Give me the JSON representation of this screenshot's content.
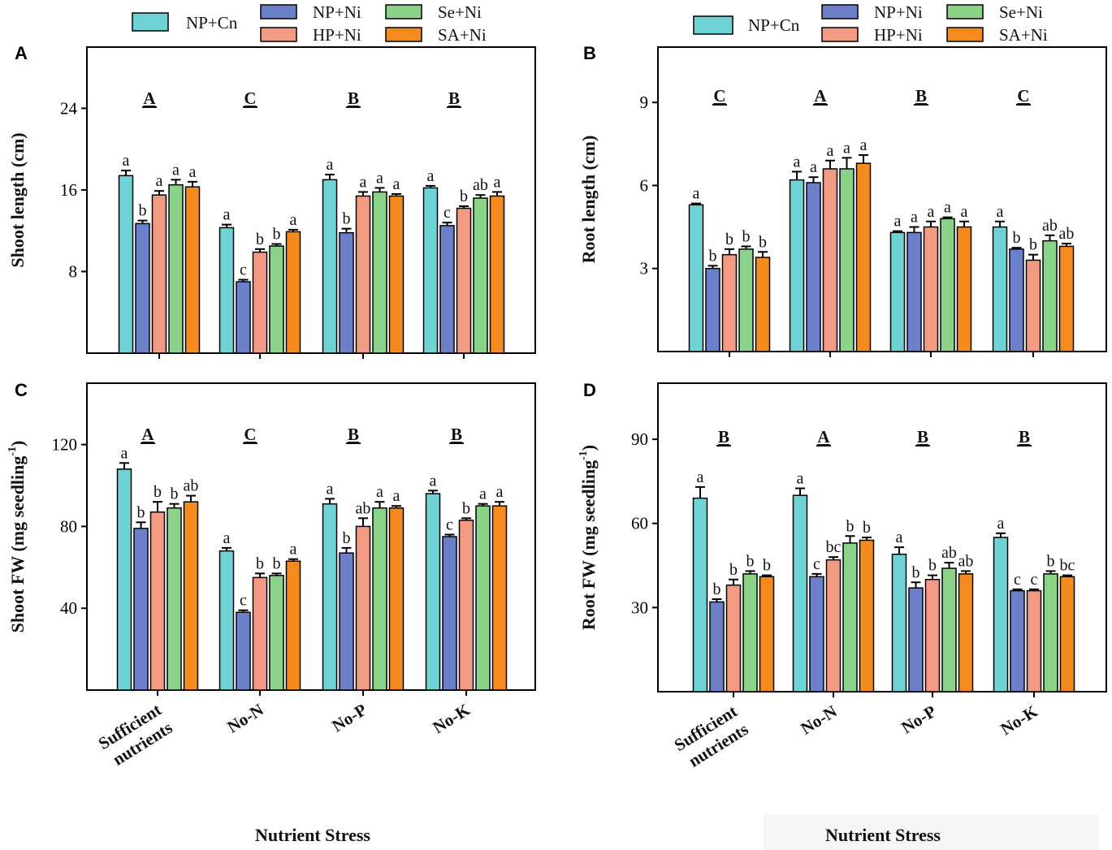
{
  "legend": {
    "entries": [
      {
        "name": "NP+Cn",
        "color": "#6fd3d6"
      },
      {
        "name": "NP+Ni",
        "color": "#6c80c9"
      },
      {
        "name": "HP+Ni",
        "color": "#f39a85"
      },
      {
        "name": "Se+Ni",
        "color": "#8cd38a"
      },
      {
        "name": "SA+Ni",
        "color": "#f58a1f"
      }
    ]
  },
  "x_axis_title": "Nutrient Stress",
  "chart_data": [
    {
      "panel": "A",
      "type": "bar",
      "ylabel": "Shoot length (cm)",
      "ylim": [
        0,
        30
      ],
      "yticks": [
        8,
        16,
        24
      ],
      "categories": [
        "Sufficient nutrients",
        "No-N",
        "No-P",
        "No-K"
      ],
      "category_lines": [
        [
          "Sufficient",
          "nutrients"
        ],
        [
          "No-N"
        ],
        [
          "No-P"
        ],
        [
          "No-K"
        ]
      ],
      "show_xticklabels": false,
      "group_letters": [
        "A",
        "C",
        "B",
        "B"
      ],
      "series": [
        {
          "name": "NP+Cn",
          "values": [
            17.4,
            12.3,
            17.0,
            16.2
          ],
          "errors": [
            0.5,
            0.3,
            0.5,
            0.2
          ],
          "letters": [
            "a",
            "a",
            "a",
            "a"
          ]
        },
        {
          "name": "NP+Ni",
          "values": [
            12.7,
            7.0,
            11.8,
            12.5
          ],
          "errors": [
            0.3,
            0.2,
            0.4,
            0.3
          ],
          "letters": [
            "b",
            "c",
            "b",
            "c"
          ]
        },
        {
          "name": "HP+Ni",
          "values": [
            15.5,
            9.9,
            15.4,
            14.2
          ],
          "errors": [
            0.4,
            0.3,
            0.4,
            0.2
          ],
          "letters": [
            "a",
            "b",
            "a",
            "b"
          ]
        },
        {
          "name": "Se+Ni",
          "values": [
            16.5,
            10.5,
            15.8,
            15.2
          ],
          "errors": [
            0.5,
            0.2,
            0.4,
            0.3
          ],
          "letters": [
            "a",
            "b",
            "a",
            "ab"
          ]
        },
        {
          "name": "SA+Ni",
          "values": [
            16.3,
            11.9,
            15.4,
            15.4
          ],
          "errors": [
            0.5,
            0.2,
            0.2,
            0.4
          ],
          "letters": [
            "a",
            "a",
            "a",
            "a"
          ]
        }
      ]
    },
    {
      "panel": "B",
      "type": "bar",
      "ylabel": "Root length (cm)",
      "ylim": [
        0,
        11
      ],
      "yticks": [
        3,
        6,
        9
      ],
      "categories": [
        "Sufficient nutrients",
        "No-N",
        "No-P",
        "No-K"
      ],
      "category_lines": [
        [
          "Sufficient",
          "nutrients"
        ],
        [
          "No-N"
        ],
        [
          "No-P"
        ],
        [
          "No-K"
        ]
      ],
      "show_xticklabels": false,
      "group_letters": [
        "C",
        "A",
        "B",
        "C"
      ],
      "series": [
        {
          "name": "NP+Cn",
          "values": [
            5.3,
            6.2,
            4.3,
            4.5
          ],
          "errors": [
            0.05,
            0.3,
            0.05,
            0.2
          ],
          "letters": [
            "a",
            "a",
            "a",
            "a"
          ]
        },
        {
          "name": "NP+Ni",
          "values": [
            3.0,
            6.1,
            4.3,
            3.7
          ],
          "errors": [
            0.1,
            0.2,
            0.2,
            0.05
          ],
          "letters": [
            "b",
            "a",
            "a",
            "b"
          ]
        },
        {
          "name": "HP+Ni",
          "values": [
            3.5,
            6.6,
            4.5,
            3.3
          ],
          "errors": [
            0.2,
            0.3,
            0.2,
            0.2
          ],
          "letters": [
            "b",
            "a",
            "a",
            "b"
          ]
        },
        {
          "name": "Se+Ni",
          "values": [
            3.7,
            6.6,
            4.8,
            4.0
          ],
          "errors": [
            0.1,
            0.4,
            0.05,
            0.2
          ],
          "letters": [
            "b",
            "a",
            "a",
            "ab"
          ]
        },
        {
          "name": "SA+Ni",
          "values": [
            3.4,
            6.8,
            4.5,
            3.8
          ],
          "errors": [
            0.2,
            0.3,
            0.2,
            0.1
          ],
          "letters": [
            "b",
            "a",
            "a",
            "ab"
          ]
        }
      ]
    },
    {
      "panel": "C",
      "type": "bar",
      "ylabel": "Shoot FW (mg seedling",
      "ylabel_sup": "-1",
      "ylabel_end": ")",
      "ylim": [
        0,
        150
      ],
      "yticks": [
        40,
        80,
        120
      ],
      "categories": [
        "Sufficient nutrients",
        "No-N",
        "No-P",
        "No-K"
      ],
      "category_lines": [
        [
          "Sufficient",
          "nutrients"
        ],
        [
          "No-N"
        ],
        [
          "No-P"
        ],
        [
          "No-K"
        ]
      ],
      "show_xticklabels": true,
      "group_letters": [
        "A",
        "C",
        "B",
        "B"
      ],
      "series": [
        {
          "name": "NP+Cn",
          "values": [
            108,
            68,
            91,
            96
          ],
          "errors": [
            3,
            1.5,
            2.5,
            1.5
          ],
          "letters": [
            "a",
            "a",
            "a",
            "a"
          ]
        },
        {
          "name": "NP+Ni",
          "values": [
            79,
            38,
            67,
            75
          ],
          "errors": [
            3,
            1,
            2.5,
            1
          ],
          "letters": [
            "b",
            "c",
            "b",
            "c"
          ]
        },
        {
          "name": "HP+Ni",
          "values": [
            87,
            55,
            80,
            83
          ],
          "errors": [
            5,
            2,
            4,
            1
          ],
          "letters": [
            "b",
            "b",
            "ab",
            "b"
          ]
        },
        {
          "name": "Se+Ni",
          "values": [
            89,
            56,
            89,
            90
          ],
          "errors": [
            2,
            1,
            3,
            1
          ],
          "letters": [
            "b",
            "b",
            "a",
            "a"
          ]
        },
        {
          "name": "SA+Ni",
          "values": [
            92,
            63,
            89,
            90
          ],
          "errors": [
            3,
            1,
            1,
            2
          ],
          "letters": [
            "ab",
            "a",
            "a",
            "a"
          ]
        }
      ]
    },
    {
      "panel": "D",
      "type": "bar",
      "ylabel": "Root FW (mg seedling",
      "ylabel_sup": "-1",
      "ylabel_end": ")",
      "ylim": [
        0,
        110
      ],
      "yticks": [
        30,
        60,
        90
      ],
      "categories": [
        "Sufficient nutrients",
        "No-N",
        "No-P",
        "No-K"
      ],
      "category_lines": [
        [
          "Sufficient",
          "nutrients"
        ],
        [
          "No-N"
        ],
        [
          "No-P"
        ],
        [
          "No-K"
        ]
      ],
      "show_xticklabels": true,
      "group_letters": [
        "B",
        "A",
        "B",
        "B"
      ],
      "series": [
        {
          "name": "NP+Cn",
          "values": [
            69,
            70,
            49,
            55
          ],
          "errors": [
            4,
            2.5,
            2.5,
            1.5
          ],
          "letters": [
            "a",
            "a",
            "a",
            "a"
          ]
        },
        {
          "name": "NP+Ni",
          "values": [
            32,
            41,
            37,
            36
          ],
          "errors": [
            1,
            1,
            2,
            0.5
          ],
          "letters": [
            "b",
            "c",
            "b",
            "c"
          ]
        },
        {
          "name": "HP+Ni",
          "values": [
            38,
            47,
            40,
            36
          ],
          "errors": [
            2,
            1,
            1.5,
            0.5
          ],
          "letters": [
            "b",
            "bc",
            "b",
            "c"
          ]
        },
        {
          "name": "Se+Ni",
          "values": [
            42,
            53,
            44,
            42
          ],
          "errors": [
            1,
            2.5,
            2,
            1
          ],
          "letters": [
            "b",
            "b",
            "ab",
            "b"
          ]
        },
        {
          "name": "SA+Ni",
          "values": [
            41,
            54,
            42,
            41
          ],
          "errors": [
            0.5,
            1,
            1,
            0.5
          ],
          "letters": [
            "b",
            "b",
            "ab",
            "bc"
          ]
        }
      ]
    }
  ]
}
